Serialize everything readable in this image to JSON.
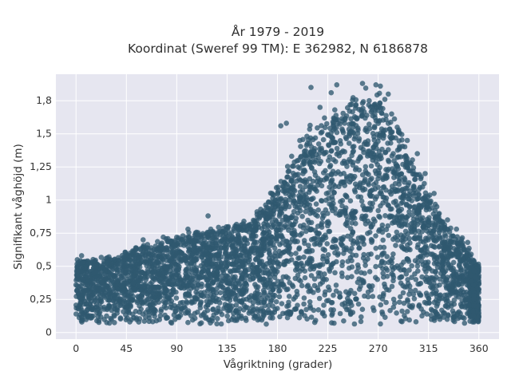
{
  "chart_data": {
    "type": "scatter",
    "title_lines": [
      "År 1979 - 2019",
      "Koordinat (Sweref 99 TM): E 362982, N 6186878"
    ],
    "xlabel": "Vågriktning (grader)",
    "ylabel": "Signifikant våghöjd (m)",
    "xlim": [
      -18,
      378
    ],
    "ylim": [
      -0.05,
      1.95
    ],
    "xticks": [
      0,
      45,
      90,
      135,
      180,
      225,
      270,
      315,
      360
    ],
    "yticks": [
      0,
      0.25,
      0.5,
      0.75,
      1,
      1.25,
      1.5,
      1.75
    ],
    "ytick_labels": [
      "0",
      "0,25",
      "0,5",
      "0,75",
      "1",
      "1,25",
      "1,5",
      "1,8"
    ],
    "grid": true,
    "colors": {
      "point": "#2f5870",
      "plot_bg": "#e6e6f0",
      "grid": "#ffffff"
    },
    "envelope": {
      "x": [
        0,
        15,
        30,
        45,
        60,
        75,
        90,
        105,
        120,
        135,
        150,
        165,
        180,
        195,
        210,
        225,
        240,
        255,
        270,
        285,
        300,
        315,
        330,
        345,
        360
      ],
      "y_max": [
        0.57,
        0.57,
        0.58,
        0.62,
        0.68,
        0.7,
        0.74,
        0.78,
        0.8,
        0.82,
        0.86,
        0.95,
        1.15,
        1.42,
        1.6,
        1.65,
        1.75,
        1.88,
        1.87,
        1.65,
        1.35,
        1.1,
        0.85,
        0.72,
        0.52
      ],
      "y_min": [
        0.06,
        0.06,
        0.06,
        0.06,
        0.06,
        0.06,
        0.06,
        0.06,
        0.06,
        0.06,
        0.06,
        0.06,
        0.06,
        0.06,
        0.06,
        0.06,
        0.06,
        0.06,
        0.06,
        0.06,
        0.06,
        0.06,
        0.06,
        0.06,
        0.08
      ]
    },
    "outliers": [
      [
        183,
        1.56
      ],
      [
        188,
        1.58
      ],
      [
        200,
        1.45
      ],
      [
        210,
        1.85
      ],
      [
        218,
        1.7
      ],
      [
        222,
        1.62
      ],
      [
        228,
        1.81
      ],
      [
        233,
        1.87
      ],
      [
        240,
        1.58
      ],
      [
        245,
        1.72
      ],
      [
        250,
        1.62
      ],
      [
        256,
        1.88
      ],
      [
        262,
        1.75
      ],
      [
        268,
        1.87
      ],
      [
        272,
        1.86
      ],
      [
        276,
        1.76
      ],
      [
        279,
        1.8
      ],
      [
        282,
        1.65
      ],
      [
        287,
        1.55
      ],
      [
        296,
        1.45
      ],
      [
        305,
        1.35
      ],
      [
        312,
        1.2
      ],
      [
        320,
        1.05
      ],
      [
        332,
        0.85
      ],
      [
        340,
        0.78
      ],
      [
        350,
        0.68
      ],
      [
        118,
        0.88
      ],
      [
        100,
        0.78
      ],
      [
        60,
        0.7
      ],
      [
        78,
        0.72
      ],
      [
        150,
        0.84
      ],
      [
        165,
        0.93
      ],
      [
        5,
        0.58
      ]
    ]
  }
}
